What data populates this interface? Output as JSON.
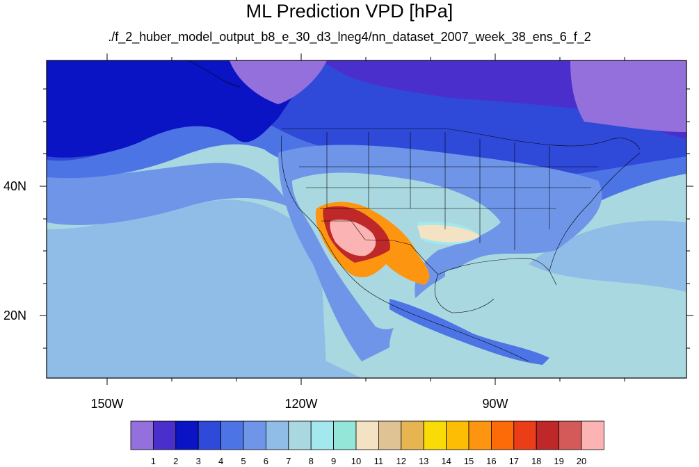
{
  "title": "ML Prediction VPD [hPa]",
  "subtitle": "./f_2_huber_model_output_b8_e_30_d3_lneg4/nn_dataset_2007_week_38_ens_6_f_2",
  "lon_labels": [
    "150W",
    "120W",
    "90W"
  ],
  "lat_labels": [
    "40N",
    "20N"
  ],
  "colorbar": {
    "labels": [
      "1",
      "2",
      "3",
      "4",
      "5",
      "6",
      "7",
      "8",
      "9",
      "10",
      "11",
      "12",
      "13",
      "14",
      "15",
      "16",
      "17",
      "18",
      "19",
      "20"
    ],
    "colors": [
      "#9370db",
      "#4b2fcd",
      "#0a14c4",
      "#2f4ad8",
      "#4d74e4",
      "#6f95e9",
      "#8fbde8",
      "#a9d8e0",
      "#a4e8ef",
      "#94e6d8",
      "#f3e3c4",
      "#e0c395",
      "#e6b450",
      "#f9db07",
      "#fdbd05",
      "#fe9510",
      "#fd6a08",
      "#ea3d18",
      "#be2828",
      "#d35a58",
      "#fbb3b3"
    ]
  },
  "map_colors": {
    "background": "#a9d8e0",
    "band_6": "#8fbde8",
    "band_5": "#6f95e9",
    "band_4": "#4d74e4",
    "band_3": "#2f4ad8",
    "band_2": "#0a14c4",
    "band_1": "#4b2fcd",
    "band_0": "#9370db",
    "cyan": "#a4e8ef",
    "tan": "#f3e3c4",
    "hot_orange": "#fe9510",
    "hot_red": "#be2828",
    "hot_pink": "#fbb3b3"
  }
}
